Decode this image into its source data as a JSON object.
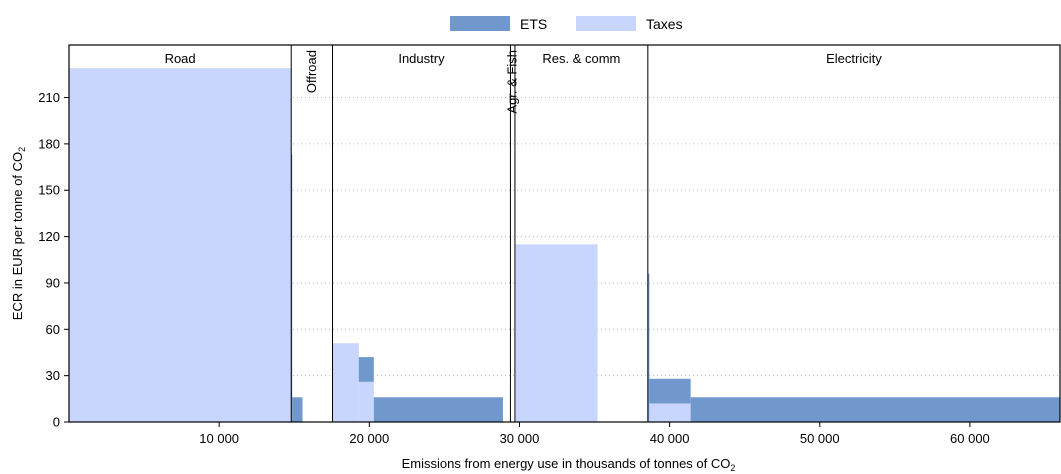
{
  "chart_data": {
    "type": "bar",
    "title": "",
    "xlabel": "Emissions from energy use in thousands of tonnes of CO",
    "xlabel_sub": "2",
    "ylabel": "ECR in EUR per tonne of CO",
    "ylabel_sub": "2",
    "xlim": [
      0,
      66000
    ],
    "ylim": [
      0,
      244
    ],
    "x_ticks": [
      {
        "value": 10000,
        "label": "10 000"
      },
      {
        "value": 20000,
        "label": "20 000"
      },
      {
        "value": 30000,
        "label": "30 000"
      },
      {
        "value": 40000,
        "label": "40 000"
      },
      {
        "value": 50000,
        "label": "50 000"
      },
      {
        "value": 60000,
        "label": "60 000"
      }
    ],
    "y_ticks": [
      {
        "value": 0,
        "label": "0"
      },
      {
        "value": 30,
        "label": "30"
      },
      {
        "value": 60,
        "label": "60"
      },
      {
        "value": 90,
        "label": "90"
      },
      {
        "value": 120,
        "label": "120"
      },
      {
        "value": 150,
        "label": "150"
      },
      {
        "value": 180,
        "label": "180"
      },
      {
        "value": 210,
        "label": "210"
      }
    ],
    "grid": "horizontal dotted",
    "legend_placement": "top-center",
    "series": [
      {
        "name": "ETS",
        "color": "#7098cc"
      },
      {
        "name": "Taxes",
        "color": "#c8d5fc"
      }
    ],
    "sectors": [
      {
        "label": "Road",
        "start": 0,
        "end": 14800,
        "orientation": "horizontal"
      },
      {
        "label": "Offroad",
        "start": 14800,
        "end": 17550,
        "orientation": "vertical"
      },
      {
        "label": "Industry",
        "start": 17550,
        "end": 29400,
        "orientation": "horizontal"
      },
      {
        "label": "Agr. & Fish",
        "start": 29400,
        "end": 29700,
        "orientation": "vertical"
      },
      {
        "label": "Res. & comm",
        "start": 29700,
        "end": 38550,
        "orientation": "horizontal"
      },
      {
        "label": "Electricity",
        "start": 38550,
        "end": 66000,
        "orientation": "horizontal"
      }
    ],
    "segments": [
      {
        "x0": 0,
        "x1": 14800,
        "taxes": 229,
        "ets": 0
      },
      {
        "x0": 14800,
        "x1": 14860,
        "taxes": 0,
        "ets": 173
      },
      {
        "x0": 14860,
        "x1": 15550,
        "taxes": 0,
        "ets": 16
      },
      {
        "x0": 17550,
        "x1": 19300,
        "taxes": 51,
        "ets": 0
      },
      {
        "x0": 19300,
        "x1": 20300,
        "taxes": 26,
        "ets": 16
      },
      {
        "x0": 20300,
        "x1": 28900,
        "taxes": 0,
        "ets": 16
      },
      {
        "x0": 29750,
        "x1": 35200,
        "taxes": 115,
        "ets": 0
      },
      {
        "x0": 38550,
        "x1": 38650,
        "taxes": 0,
        "ets": 96
      },
      {
        "x0": 38650,
        "x1": 41400,
        "taxes": 12,
        "ets": 16
      },
      {
        "x0": 41400,
        "x1": 66000,
        "taxes": 0,
        "ets": 16
      }
    ]
  }
}
